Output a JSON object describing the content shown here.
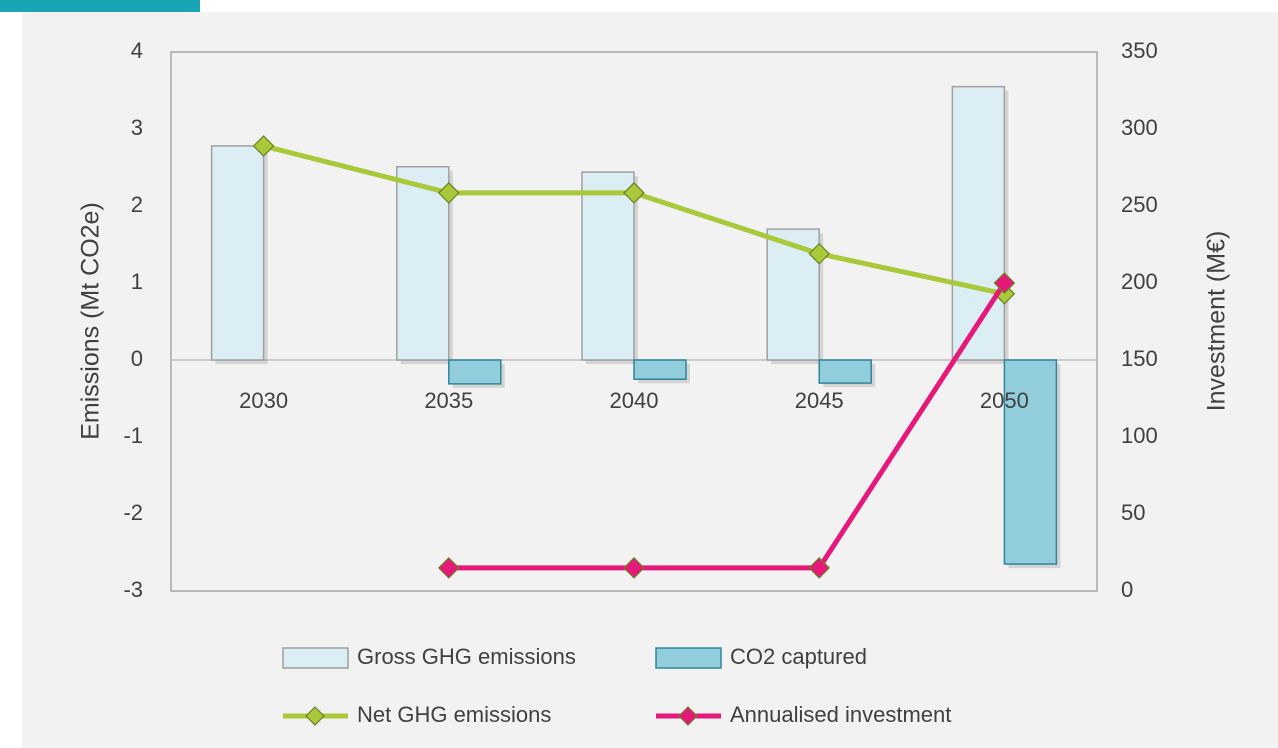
{
  "chart_data": {
    "type": "bar",
    "y_label": "Emissions (Mt CO2e)",
    "y2_label": "Investment (M€)",
    "categories": [
      "2030",
      "2035",
      "2040",
      "2045",
      "2050"
    ],
    "series": [
      {
        "name": "Gross GHG emissions",
        "type": "bar",
        "color": "#daeef3",
        "values": [
          2.78,
          2.51,
          2.44,
          1.7,
          3.55
        ]
      },
      {
        "name": "CO2 captured",
        "type": "bar",
        "color": "#92cddc",
        "values": [
          null,
          -0.31,
          -0.25,
          -0.3,
          -2.65
        ]
      },
      {
        "name": "Net GHG emissions",
        "type": "line",
        "color": "#a9c83a",
        "values": [
          2.78,
          2.17,
          2.17,
          1.38,
          0.86
        ]
      },
      {
        "name": "Annualised investment",
        "type": "line",
        "axis": "y2",
        "color": "#e6197a",
        "values": [
          null,
          15,
          15,
          15,
          200
        ]
      }
    ],
    "ylim": [
      -3,
      4
    ],
    "yticks": [
      -3,
      -2,
      -1,
      0,
      1,
      2,
      3,
      4
    ],
    "y2lim": [
      0,
      350
    ],
    "y2ticks": [
      0,
      50,
      100,
      150,
      200,
      250,
      300,
      350
    ],
    "legend": "bottom"
  }
}
